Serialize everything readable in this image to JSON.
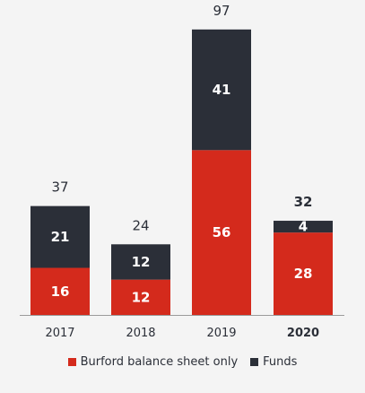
{
  "chart_data": {
    "type": "bar",
    "stacked": true,
    "categories": [
      "2017",
      "2018",
      "2019",
      "2020"
    ],
    "series": [
      {
        "name": "Burford balance sheet only",
        "values": [
          16,
          12,
          56,
          28
        ],
        "color": "#d42a1c"
      },
      {
        "name": "Funds",
        "values": [
          21,
          12,
          41,
          4
        ],
        "color": "#2b2f38"
      }
    ],
    "totals": [
      37,
      24,
      97,
      32
    ],
    "bold_categories": [
      "2020"
    ],
    "ylim": [
      0,
      100
    ],
    "grid": false,
    "legend_position": "bottom",
    "axis_color": "#9a9a9a",
    "background": "#f4f4f4"
  }
}
